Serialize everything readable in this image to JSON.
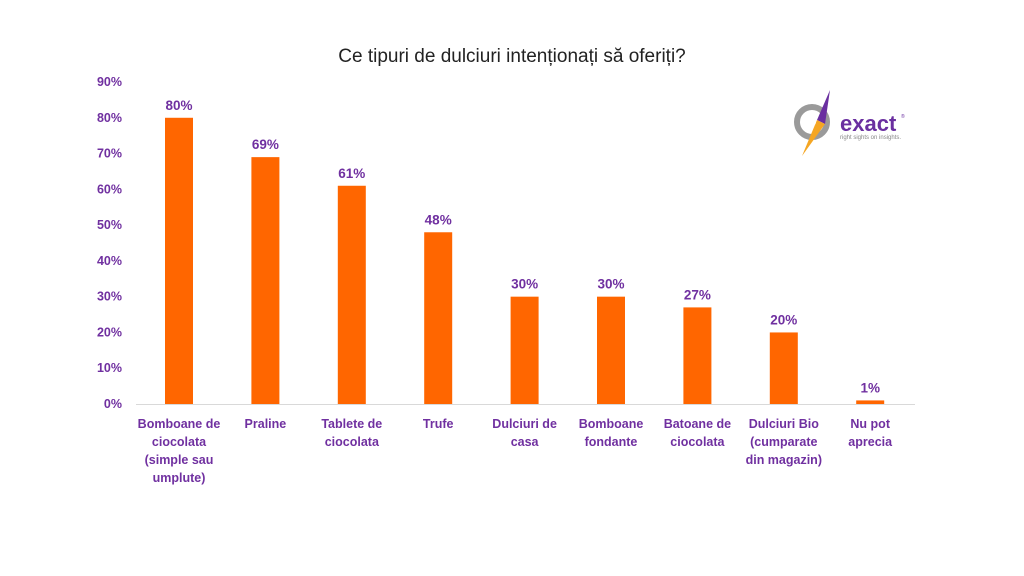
{
  "chart_data": {
    "type": "bar",
    "title": "Ce tipuri de dulciuri intenționați să oferiți?",
    "categories": [
      [
        "Bomboane de",
        "ciocolata",
        "(simple sau",
        "umplute)"
      ],
      [
        "Praline"
      ],
      [
        "Tablete de",
        "ciocolata"
      ],
      [
        "Trufe"
      ],
      [
        "Dulciuri de",
        "casa"
      ],
      [
        "Bomboane",
        "fondante"
      ],
      [
        "Batoane de",
        "ciocolata"
      ],
      [
        "Dulciuri Bio",
        "(cumparate",
        "din magazin)"
      ],
      [
        "Nu pot",
        "aprecia"
      ]
    ],
    "values": [
      80,
      69,
      61,
      48,
      30,
      30,
      27,
      20,
      1
    ],
    "data_labels": [
      "80%",
      "69%",
      "61%",
      "48%",
      "30%",
      "30%",
      "27%",
      "20%",
      "1%"
    ],
    "yticks": [
      "0%",
      "10%",
      "20%",
      "30%",
      "40%",
      "50%",
      "60%",
      "70%",
      "80%",
      "90%"
    ],
    "ylim": [
      0,
      90
    ],
    "xlabel": "",
    "ylabel": "",
    "grid": false,
    "bar_color": "#FF6600",
    "label_color": "#7030A0"
  },
  "logo": {
    "name": "exact",
    "tagline": "right sights on insights."
  }
}
